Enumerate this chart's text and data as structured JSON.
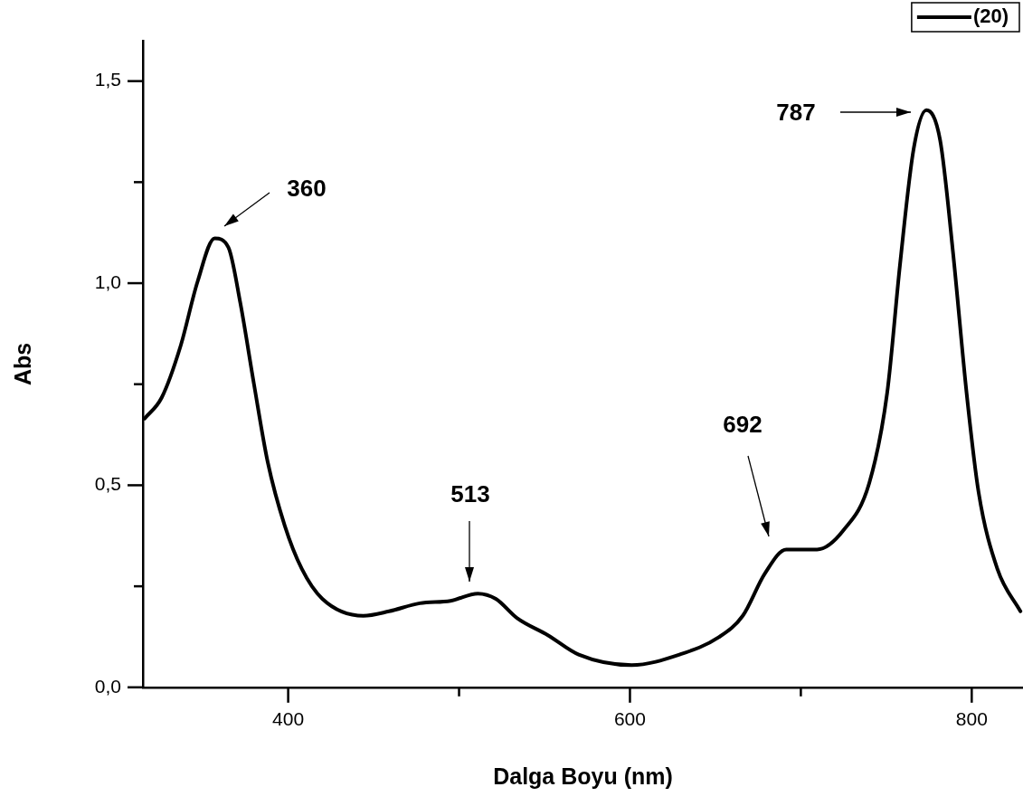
{
  "chart_data": {
    "type": "line",
    "xlabel": "Dalga Boyu (nm)",
    "ylabel": "Abs",
    "legend": "top right",
    "marker": "none",
    "line_style": "solid",
    "xlim": [
      315,
      830
    ],
    "ylim": [
      0,
      1.6
    ],
    "xticks": [
      400,
      {
        "value": 500,
        "label": null
      },
      600,
      {
        "value": 700,
        "label": null
      },
      800
    ],
    "yticks": [
      {
        "value": 0,
        "label": "0,0"
      },
      {
        "value": 0.25,
        "label": null
      },
      {
        "value": 0.5,
        "label": "0,5"
      },
      {
        "value": 0.75,
        "label": null
      },
      {
        "value": 1,
        "label": "1,0"
      },
      {
        "value": 1.25,
        "label": null
      },
      {
        "value": 1.5,
        "label": "1,5"
      }
    ],
    "series": [
      {
        "name": "(20)",
        "color": "#000000",
        "x": [
          316,
          326,
          337,
          347,
          357,
          365,
          372,
          380,
          388,
          398,
          408,
          420,
          444,
          459,
          477,
          495,
          511,
          521.5,
          534,
          552,
          570,
          601,
          629,
          652,
          666,
          679,
          691.5,
          709.5,
          725,
          740,
          750.5,
          758,
          766,
          773.5,
          781.5,
          789,
          797,
          804,
          815,
          828.5
        ],
        "values": [
          0.665,
          0.717,
          0.844,
          1.004,
          1.111,
          1.089,
          0.951,
          0.75,
          0.558,
          0.4,
          0.293,
          0.219,
          0.177,
          0.188,
          0.208,
          0.214,
          0.232,
          0.219,
          0.171,
          0.129,
          0.081,
          0.055,
          0.081,
          0.124,
          0.177,
          0.282,
          0.341,
          0.341,
          0.389,
          0.505,
          0.728,
          1.045,
          1.332,
          1.428,
          1.354,
          1.078,
          0.728,
          0.483,
          0.293,
          0.188
        ]
      }
    ],
    "annotations": [
      "360",
      "513",
      "692",
      "787"
    ]
  }
}
